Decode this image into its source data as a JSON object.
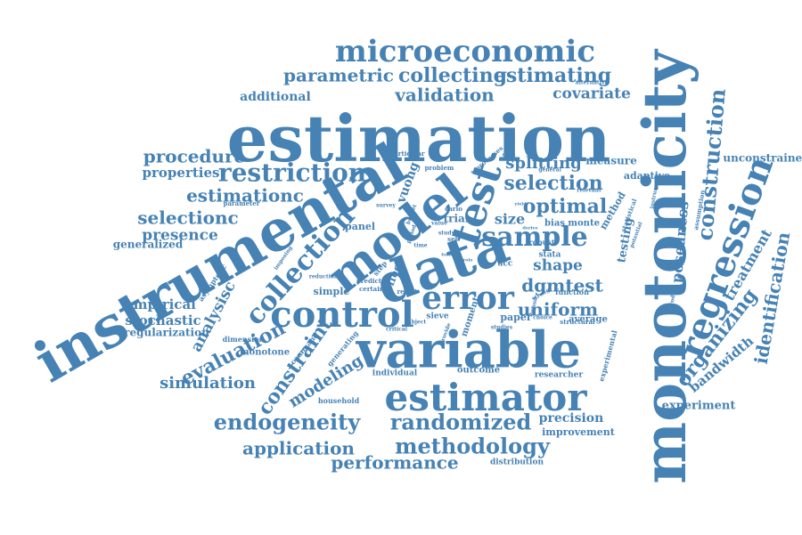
{
  "color": "#4682b4",
  "words": [
    {
      "text": "monotonicity",
      "w": 36
    },
    {
      "text": "instrumental",
      "w": 38
    },
    {
      "text": "estimation",
      "w": 40
    },
    {
      "text": "variable",
      "w": 42
    },
    {
      "text": "data",
      "w": 41
    },
    {
      "text": "model",
      "w": 39
    },
    {
      "text": "estimator",
      "w": 37
    },
    {
      "text": "test",
      "w": 35
    },
    {
      "text": "control",
      "w": 33
    },
    {
      "text": "regression",
      "w": 31
    },
    {
      "text": "error",
      "w": 30
    },
    {
      "text": "microeconomic",
      "w": 29
    },
    {
      "text": "sample",
      "w": 28
    },
    {
      "text": "collection",
      "w": 27
    },
    {
      "text": "restriction",
      "w": 26
    },
    {
      "text": "endogeneity",
      "w": 26
    },
    {
      "text": "methodology",
      "w": 26
    },
    {
      "text": "randomized",
      "w": 25
    },
    {
      "text": "construction",
      "w": 25
    },
    {
      "text": "estimating",
      "w": 24
    },
    {
      "text": "collecting",
      "w": 24
    },
    {
      "text": "constraint",
      "w": 23
    },
    {
      "text": "organizing",
      "w": 22
    },
    {
      "text": "identification",
      "w": 22
    },
    {
      "text": "parametric",
      "w": 22
    },
    {
      "text": "estimationc",
      "w": 22
    },
    {
      "text": "selection",
      "w": 22
    },
    {
      "text": "optimal",
      "w": 22
    },
    {
      "text": "evaluation",
      "w": 21
    },
    {
      "text": "performance",
      "w": 21
    },
    {
      "text": "application",
      "w": 21
    },
    {
      "text": "validation",
      "w": 21
    },
    {
      "text": "procedure",
      "w": 20
    },
    {
      "text": "selectionc",
      "w": 20
    },
    {
      "text": "uniform",
      "w": 20
    },
    {
      "text": "dgmtest",
      "w": 19
    },
    {
      "text": "modeling",
      "w": 19
    },
    {
      "text": "simulation",
      "w": 19
    },
    {
      "text": "covariate",
      "w": 18
    },
    {
      "text": "splitting",
      "w": 18
    },
    {
      "text": "presence",
      "w": 18
    },
    {
      "text": "analysisc",
      "w": 18
    },
    {
      "text": "treatment",
      "w": 18
    },
    {
      "text": "posedness",
      "w": 17
    },
    {
      "text": "bandwidth",
      "w": 17
    },
    {
      "text": "shape",
      "w": 17
    },
    {
      "text": "size",
      "w": 16
    },
    {
      "text": "properties",
      "w": 16
    },
    {
      "text": "empirical",
      "w": 15
    },
    {
      "text": "stochastic",
      "w": 15
    },
    {
      "text": "additional",
      "w": 15
    },
    {
      "text": "testing",
      "w": 14
    },
    {
      "text": "vuong",
      "w": 14
    },
    {
      "text": "precision",
      "w": 14
    },
    {
      "text": "experiment",
      "w": 13
    },
    {
      "text": "generalized",
      "w": 13
    },
    {
      "text": "regularization",
      "w": 12
    },
    {
      "text": "unconstrained",
      "w": 12
    },
    {
      "text": "measure",
      "w": 12
    },
    {
      "text": "improvement",
      "w": 12
    },
    {
      "text": "effect",
      "w": 12
    },
    {
      "text": "trial",
      "w": 12
    },
    {
      "text": "panel",
      "w": 11
    },
    {
      "text": "method",
      "w": 11
    },
    {
      "text": "adaptive",
      "w": 11
    },
    {
      "text": "paper",
      "w": 11
    },
    {
      "text": "outcome",
      "w": 11
    },
    {
      "text": "simple",
      "w": 11
    },
    {
      "text": "average",
      "w": 10
    },
    {
      "text": "bias monte",
      "w": 10
    },
    {
      "text": "moment",
      "w": 10
    },
    {
      "text": "monotone",
      "w": 10
    },
    {
      "text": "stata",
      "w": 9
    },
    {
      "text": "sieve",
      "w": 9
    },
    {
      "text": "acc",
      "w": 9
    },
    {
      "text": "distribution",
      "w": 9
    },
    {
      "text": "researcher",
      "w": 9
    },
    {
      "text": "individual",
      "w": 9
    },
    {
      "text": "household",
      "w": 9
    },
    {
      "text": "function",
      "w": 8
    },
    {
      "text": "dimension",
      "w": 8
    },
    {
      "text": "robust",
      "w": 8
    },
    {
      "text": "step",
      "w": 8
    },
    {
      "text": "asymptotic",
      "w": 8
    },
    {
      "text": "command",
      "w": 8
    },
    {
      "text": "generating",
      "w": 8
    },
    {
      "text": "experimental",
      "w": 8
    },
    {
      "text": "alternative",
      "w": 7
    },
    {
      "text": "particular",
      "w": 7
    },
    {
      "text": "parameter",
      "w": 7
    },
    {
      "text": "problem",
      "w": 7
    },
    {
      "text": "processes",
      "w": 7
    },
    {
      "text": "general",
      "w": 7
    },
    {
      "text": "relevant",
      "w": 7
    },
    {
      "text": "instrument",
      "w": 7
    },
    {
      "text": "assumption",
      "w": 7
    },
    {
      "text": "statistical",
      "w": 7
    },
    {
      "text": "potential",
      "w": 7
    },
    {
      "text": "structural",
      "w": 7
    },
    {
      "text": "choice",
      "w": 7
    },
    {
      "text": "introduce",
      "w": 7
    },
    {
      "text": "studies",
      "w": 7
    },
    {
      "text": "result",
      "w": 7
    },
    {
      "text": "certain",
      "w": 7
    },
    {
      "text": "predict",
      "w": 7
    },
    {
      "text": "critical",
      "w": 6
    },
    {
      "text": "subject",
      "w": 6
    },
    {
      "text": "provide",
      "w": 6
    },
    {
      "text": "reduction",
      "w": 6
    },
    {
      "text": "imposing",
      "w": 6
    },
    {
      "text": "carlo",
      "w": 6
    },
    {
      "text": "survey",
      "w": 6
    },
    {
      "text": "value",
      "w": 6
    },
    {
      "text": "budget",
      "w": 6
    },
    {
      "text": "study",
      "w": 6
    },
    {
      "text": "set",
      "w": 6
    },
    {
      "text": "time",
      "w": 6
    },
    {
      "text": "period",
      "w": 6
    },
    {
      "text": "strong",
      "w": 6
    },
    {
      "text": "bound",
      "w": 6
    },
    {
      "text": "derive",
      "w": 5
    },
    {
      "text": "yield",
      "w": 5
    },
    {
      "text": "exist",
      "w": 5
    },
    {
      "text": "finite",
      "w": 5
    },
    {
      "text": "type",
      "w": 5
    },
    {
      "text": "form",
      "w": 5
    },
    {
      "text": "role",
      "w": 5
    }
  ]
}
